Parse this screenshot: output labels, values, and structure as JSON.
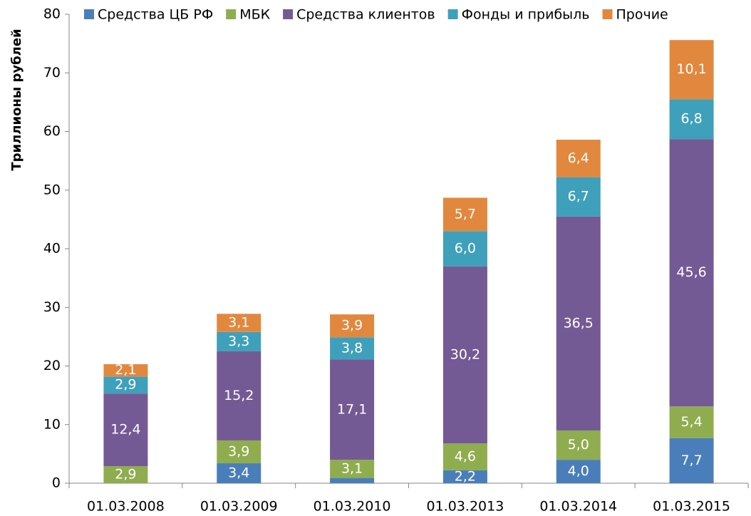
{
  "chart_data": {
    "type": "stacked_bar",
    "y_label": "Триллионы рублей",
    "categories": [
      "01.03.2008",
      "01.03.2009",
      "01.03.2010",
      "01.03.2013",
      "01.03.2014",
      "01.03.2015"
    ],
    "series": [
      {
        "name": "Средства ЦБ РФ",
        "color": "#4a7ebb",
        "values": [
          null,
          3.4,
          0.9,
          2.2,
          4.0,
          7.7
        ],
        "value_labels": [
          null,
          "3,4",
          null,
          "2,2",
          "4,0",
          "7,7"
        ]
      },
      {
        "name": "МБК",
        "color": "#8fad4e",
        "values": [
          2.9,
          3.9,
          3.1,
          4.6,
          5.0,
          5.4
        ],
        "value_labels": [
          "2,9",
          "3,9",
          "3,1",
          "4,6",
          "5,0",
          "5,4"
        ]
      },
      {
        "name": "Средства клиентов",
        "color": "#745a94",
        "values": [
          12.4,
          15.2,
          17.1,
          30.2,
          36.5,
          45.6
        ],
        "value_labels": [
          "12,4",
          "15,2",
          "17,1",
          "30,2",
          "36,5",
          "45,6"
        ]
      },
      {
        "name": "Фонды и прибыль",
        "color": "#3fa0bb",
        "values": [
          2.9,
          3.3,
          3.8,
          6.0,
          6.7,
          6.8
        ],
        "value_labels": [
          "2,9",
          "3,3",
          "3,8",
          "6,0",
          "6,7",
          "6,8"
        ]
      },
      {
        "name": "Прочие",
        "color": "#e2883e",
        "values": [
          2.1,
          3.1,
          3.9,
          5.7,
          6.4,
          10.1
        ],
        "value_labels": [
          "2,1",
          "3,1",
          "3,9",
          "5,7",
          "6,4",
          "10,1"
        ]
      }
    ],
    "ylim": [
      0,
      80
    ],
    "yticks": [
      0,
      10,
      20,
      30,
      40,
      50,
      60,
      70,
      80
    ],
    "grid": false,
    "legend": "top"
  }
}
